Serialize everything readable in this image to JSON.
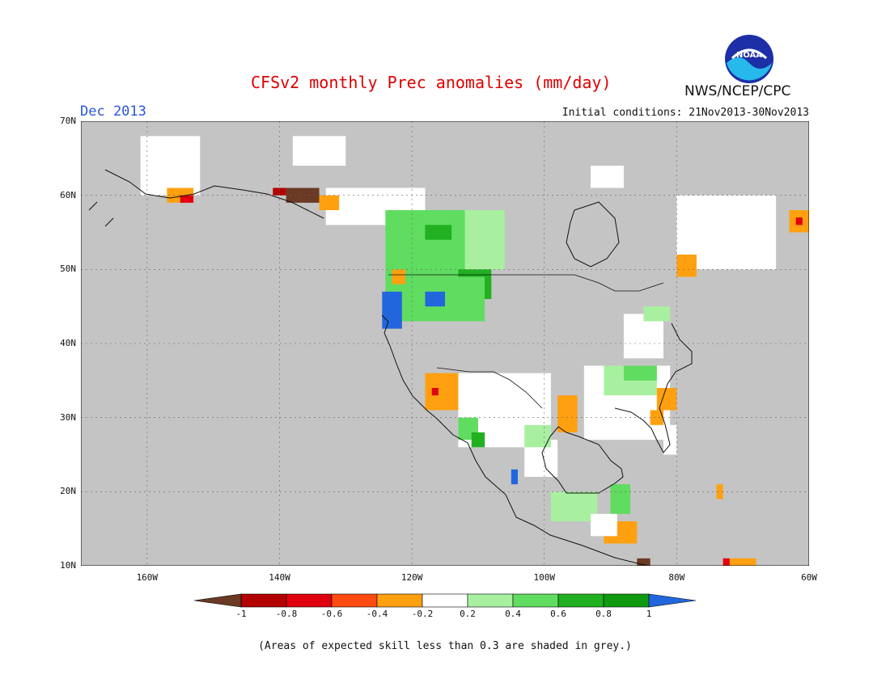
{
  "title": "CFSv2 monthly Prec anomalies (mm/day)",
  "valid_month": "Dec 2013",
  "initial_conditions": "Initial conditions: 21Nov2013-30Nov2013",
  "agency": "NWS/NCEP/CPC",
  "logo_text": "NOAA",
  "footnote": "(Areas of expected skill less than 0.3 are shaded in grey.)",
  "lat_labels": [
    "70N",
    "60N",
    "50N",
    "40N",
    "30N",
    "20N",
    "10N"
  ],
  "lon_labels": [
    "160W",
    "140W",
    "120W",
    "100W",
    "80W",
    "60W"
  ],
  "colorbar": {
    "labels": [
      "-1",
      "-0.8",
      "-0.6",
      "-0.4",
      "-0.2",
      "0.2",
      "0.4",
      "0.6",
      "0.8",
      "1"
    ],
    "colors": [
      "#6b3a24",
      "#b30000",
      "#e0000e",
      "#ff4a10",
      "#ffa010",
      "#ffffff",
      "#a8f0a0",
      "#60dc60",
      "#20b020",
      "#109a10",
      "#2266dd"
    ]
  },
  "colors": {
    "grey_low_skill": "#c4c4c4",
    "title": "#dd0000",
    "month": "#2a55d8"
  },
  "map_extent": {
    "lon_min": -170,
    "lon_max": -60,
    "lat_min": 10,
    "lat_max": 70
  },
  "regions": [
    {
      "name": "white-alaska",
      "color": "#ffffff",
      "lon": [
        -161,
        -152
      ],
      "lat": [
        60,
        68
      ]
    },
    {
      "name": "white-canada-nw",
      "color": "#ffffff",
      "lon": [
        -138,
        -130
      ],
      "lat": [
        64,
        68
      ]
    },
    {
      "name": "white-western-canada",
      "color": "#ffffff",
      "lon": [
        -133,
        -118
      ],
      "lat": [
        56,
        61
      ]
    },
    {
      "name": "lightgreen-prairies",
      "color": "#a8f0a0",
      "lon": [
        -120,
        -106
      ],
      "lat": [
        50,
        58
      ]
    },
    {
      "name": "green-bc-alberta",
      "color": "#60dc60",
      "lon": [
        -124,
        -112
      ],
      "lat": [
        49,
        58
      ]
    },
    {
      "name": "darkgreen-alberta",
      "color": "#20b020",
      "lon": [
        -118,
        -114
      ],
      "lat": [
        54,
        56
      ]
    },
    {
      "name": "darkgreen-montana",
      "color": "#20b020",
      "lon": [
        -113,
        -108
      ],
      "lat": [
        46,
        50
      ]
    },
    {
      "name": "green-pnw",
      "color": "#60dc60",
      "lon": [
        -124,
        -109
      ],
      "lat": [
        43,
        49
      ]
    },
    {
      "name": "blue-oregon",
      "color": "#2266dd",
      "lon": [
        -124.5,
        -121.5
      ],
      "lat": [
        42,
        47
      ]
    },
    {
      "name": "blue-idaho",
      "color": "#2266dd",
      "lon": [
        -118,
        -115
      ],
      "lat": [
        45,
        47
      ]
    },
    {
      "name": "orange-pnw-coast",
      "color": "#ffa010",
      "lon": [
        -123,
        -121
      ],
      "lat": [
        48,
        50
      ]
    },
    {
      "name": "white-southwest",
      "color": "#ffffff",
      "lon": [
        -113,
        -99
      ],
      "lat": [
        26,
        36
      ]
    },
    {
      "name": "orange-socal",
      "color": "#ffa010",
      "lon": [
        -118,
        -113
      ],
      "lat": [
        31,
        36
      ]
    },
    {
      "name": "red-socal",
      "color": "#e0000e",
      "lon": [
        -117,
        -116
      ],
      "lat": [
        33,
        34
      ]
    },
    {
      "name": "green-sonora",
      "color": "#60dc60",
      "lon": [
        -113,
        -110
      ],
      "lat": [
        27,
        30
      ]
    },
    {
      "name": "darkgreen-sonora",
      "color": "#20b020",
      "lon": [
        -111,
        -109
      ],
      "lat": [
        26,
        28
      ]
    },
    {
      "name": "blue-mexico",
      "color": "#2266dd",
      "lon": [
        -105,
        -104
      ],
      "lat": [
        21,
        23
      ]
    },
    {
      "name": "white-mexico",
      "color": "#ffffff",
      "lon": [
        -103,
        -98
      ],
      "lat": [
        22,
        27
      ]
    },
    {
      "name": "lightgreen-mexico",
      "color": "#a8f0a0",
      "lon": [
        -103,
        -99
      ],
      "lat": [
        26,
        29
      ]
    },
    {
      "name": "orange-texas",
      "color": "#ffa010",
      "lon": [
        -98,
        -95
      ],
      "lat": [
        28,
        33
      ]
    },
    {
      "name": "white-gulf-coast",
      "color": "#ffffff",
      "lon": [
        -94,
        -81
      ],
      "lat": [
        27,
        37
      ]
    },
    {
      "name": "lightgreen-southeast",
      "color": "#a8f0a0",
      "lon": [
        -91,
        -83
      ],
      "lat": [
        33,
        37
      ]
    },
    {
      "name": "green-tennessee",
      "color": "#60dc60",
      "lon": [
        -88,
        -83
      ],
      "lat": [
        35,
        37
      ]
    },
    {
      "name": "orange-carolina",
      "color": "#ffa010",
      "lon": [
        -83,
        -80
      ],
      "lat": [
        31,
        34
      ]
    },
    {
      "name": "orange-florida",
      "color": "#ffa010",
      "lon": [
        -84,
        -82
      ],
      "lat": [
        29,
        31
      ]
    },
    {
      "name": "white-florida",
      "color": "#ffffff",
      "lon": [
        -82,
        -80
      ],
      "lat": [
        25,
        29
      ]
    },
    {
      "name": "white-great-lakes",
      "color": "#ffffff",
      "lon": [
        -88,
        -82
      ],
      "lat": [
        38,
        44
      ]
    },
    {
      "name": "lightgreen-great-lakes",
      "color": "#a8f0a0",
      "lon": [
        -85,
        -81
      ],
      "lat": [
        43,
        45
      ]
    },
    {
      "name": "white-quebec",
      "color": "#ffffff",
      "lon": [
        -80,
        -65
      ],
      "lat": [
        50,
        60
      ]
    },
    {
      "name": "orange-quebec",
      "color": "#ffa010",
      "lon": [
        -80,
        -77
      ],
      "lat": [
        49,
        52
      ]
    },
    {
      "name": "orange-labrador",
      "color": "#ffa010",
      "lon": [
        -63,
        -60
      ],
      "lat": [
        55,
        58
      ]
    },
    {
      "name": "red-labrador",
      "color": "#e0000e",
      "lon": [
        -62,
        -61
      ],
      "lat": [
        56,
        57
      ]
    },
    {
      "name": "white-hudson",
      "color": "#ffffff",
      "lon": [
        -93,
        -88
      ],
      "lat": [
        61,
        64
      ]
    },
    {
      "name": "brown-alaska-panhandle",
      "color": "#6b3a24",
      "lon": [
        -139,
        -134
      ],
      "lat": [
        59,
        61
      ]
    },
    {
      "name": "red-alaska-panhandle",
      "color": "#b30000",
      "lon": [
        -141,
        -139
      ],
      "lat": [
        60,
        61
      ]
    },
    {
      "name": "orange-alaska-panhandle",
      "color": "#ffa010",
      "lon": [
        -134,
        -131
      ],
      "lat": [
        58,
        60
      ]
    },
    {
      "name": "orange-alaska-south",
      "color": "#ffa010",
      "lon": [
        -157,
        -153
      ],
      "lat": [
        59,
        61
      ]
    },
    {
      "name": "red-alaska-south",
      "color": "#e0000e",
      "lon": [
        -155,
        -153
      ],
      "lat": [
        59,
        60
      ]
    },
    {
      "name": "orange-central-america",
      "color": "#ffa010",
      "lon": [
        -91,
        -86
      ],
      "lat": [
        13,
        16
      ]
    },
    {
      "name": "green-yucatan",
      "color": "#60dc60",
      "lon": [
        -90,
        -87
      ],
      "lat": [
        17,
        21
      ]
    },
    {
      "name": "lightgreen-central-mexico",
      "color": "#a8f0a0",
      "lon": [
        -99,
        -92
      ],
      "lat": [
        16,
        20
      ]
    },
    {
      "name": "white-central-america",
      "color": "#ffffff",
      "lon": [
        -93,
        -89
      ],
      "lat": [
        14,
        17
      ]
    },
    {
      "name": "brown-central-america",
      "color": "#6b3a24",
      "lon": [
        -86,
        -84
      ],
      "lat": [
        10,
        11
      ]
    },
    {
      "name": "orange-venezuela",
      "color": "#ffa010",
      "lon": [
        -72,
        -68
      ],
      "lat": [
        10,
        11
      ]
    },
    {
      "name": "red-venezuela",
      "color": "#e0000e",
      "lon": [
        -73,
        -72
      ],
      "lat": [
        10,
        11
      ]
    },
    {
      "name": "orange-caribbean",
      "color": "#ffa010",
      "lon": [
        -74,
        -73
      ],
      "lat": [
        19,
        21
      ]
    }
  ]
}
